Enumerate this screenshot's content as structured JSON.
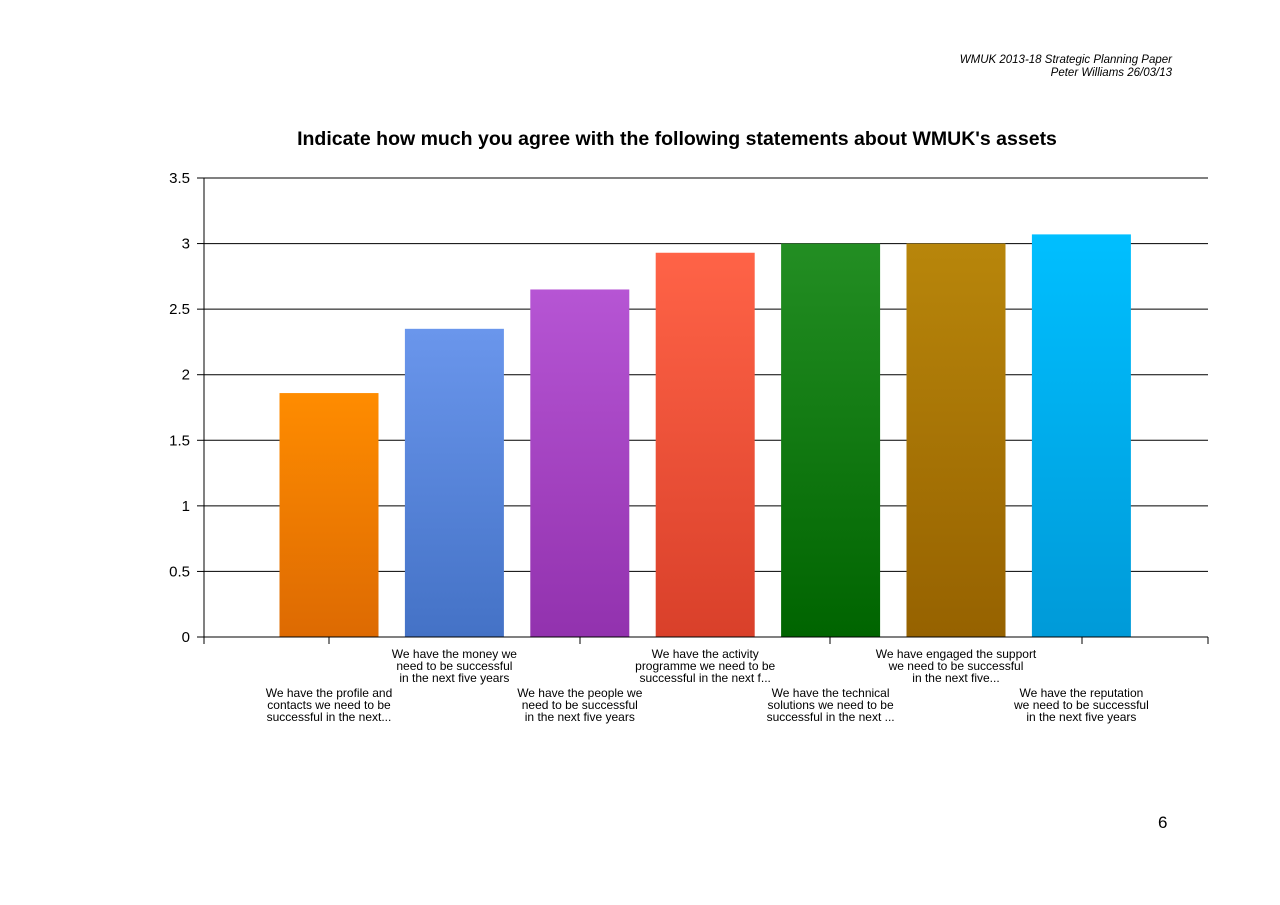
{
  "header": {
    "doc_title": "WMUK 2013-18 Strategic Planning Paper",
    "author_date": "Peter Williams 26/03/13"
  },
  "page_number": "6",
  "chart_data": {
    "type": "bar",
    "title": "Indicate how much you agree with the following statements about WMUK's assets",
    "xlabel": "",
    "ylabel": "",
    "ylim": [
      0,
      3.5
    ],
    "yticks": [
      "0",
      "0.5",
      "1",
      "1.5",
      "2",
      "2.5",
      "3",
      "3.5"
    ],
    "grid": true,
    "categories": [
      "We have the profile and contacts we need to be successful in the next...",
      "We have the money we need to be successful in the next five years",
      "We have the people we need to be successful in the next five years",
      "We have the activity programme we need to be successful in the next f...",
      "We have the technical solutions we need to be successful in the next ...",
      "We have engaged the support we need to be successful in the next five...",
      "We have the reputation we need to be successful in the next five years"
    ],
    "category_label_lines": [
      [
        "We have the profile and",
        "contacts we need to be",
        "successful in the next..."
      ],
      [
        "We have the money we",
        "need to be successful",
        "in the next five years"
      ],
      [
        "We have the people we",
        "need to be successful",
        "in the next five years"
      ],
      [
        "We have the activity",
        "programme we need to be",
        "successful in the next f..."
      ],
      [
        "We have the technical",
        "solutions we need to be",
        "successful in the next ..."
      ],
      [
        "We have engaged the support",
        "we need to be successful",
        "in the next five..."
      ],
      [
        "We have the reputation",
        "we need to be successful",
        "in the next five years"
      ]
    ],
    "values": [
      1.86,
      2.35,
      2.65,
      2.93,
      3.0,
      3.0,
      3.07
    ],
    "colors": [
      [
        "#ff8c00",
        "#dd6a02"
      ],
      [
        "#6a96ec",
        "#4472c6"
      ],
      [
        "#b655d4",
        "#9232ae"
      ],
      [
        "#ff6347",
        "#d9402a"
      ],
      [
        "#238e23",
        "#006400"
      ],
      [
        "#b8860b",
        "#966200"
      ],
      [
        "#00bfff",
        "#009ad8"
      ]
    ]
  }
}
